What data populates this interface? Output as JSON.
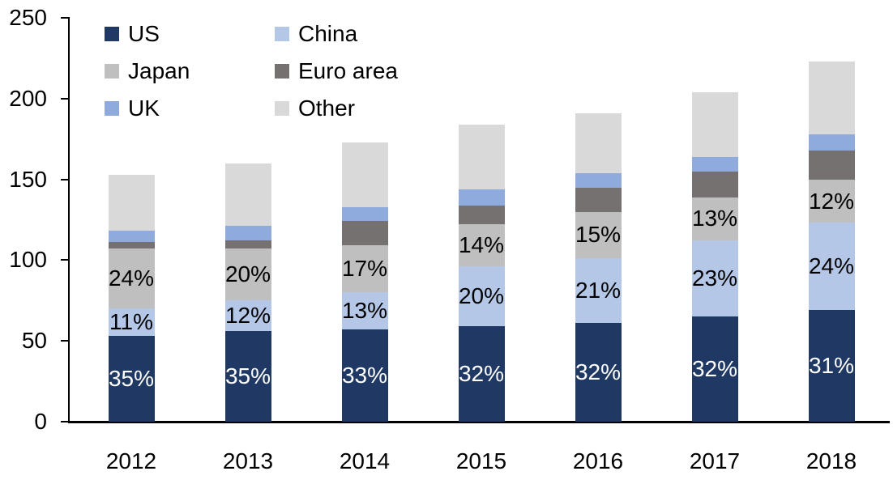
{
  "chart_data": {
    "type": "bar",
    "stacked": true,
    "title": "",
    "xlabel": "",
    "ylabel": "",
    "categories": [
      "2012",
      "2013",
      "2014",
      "2015",
      "2016",
      "2017",
      "2018"
    ],
    "y_ticks": [
      0,
      50,
      100,
      150,
      200,
      250
    ],
    "ylim": [
      0,
      250
    ],
    "grid": false,
    "legend_position": "top-left",
    "axis_color": "#000000",
    "background_color": "#FFFFFF",
    "totals": [
      153,
      160,
      173,
      184,
      191,
      204,
      223
    ],
    "series": [
      {
        "name": "US",
        "color": "#1F3864",
        "label_color": "#FFFFFF",
        "values": [
          53,
          56,
          57,
          59,
          61,
          65,
          69
        ],
        "pct_labels": [
          "35%",
          "35%",
          "33%",
          "32%",
          "32%",
          "32%",
          "31%"
        ]
      },
      {
        "name": "China",
        "color": "#B4C7E7",
        "label_color": "#000000",
        "values": [
          17,
          19,
          23,
          37,
          40,
          47,
          54
        ],
        "pct_labels": [
          "11%",
          "12%",
          "13%",
          "20%",
          "21%",
          "23%",
          "24%"
        ]
      },
      {
        "name": "Japan",
        "color": "#BFBFBF",
        "label_color": "#000000",
        "values": [
          37,
          32,
          29,
          26,
          29,
          27,
          27
        ],
        "pct_labels": [
          "24%",
          "20%",
          "17%",
          "14%",
          "15%",
          "13%",
          "12%"
        ]
      },
      {
        "name": "Euro area",
        "color": "#767171",
        "values": [
          4,
          5,
          15,
          12,
          15,
          16,
          18
        ]
      },
      {
        "name": "UK",
        "color": "#8FAADC",
        "values": [
          7,
          9,
          9,
          10,
          9,
          9,
          10
        ]
      },
      {
        "name": "Other",
        "color": "#D9D9D9",
        "values": [
          35,
          39,
          40,
          40,
          37,
          40,
          45
        ]
      }
    ]
  }
}
